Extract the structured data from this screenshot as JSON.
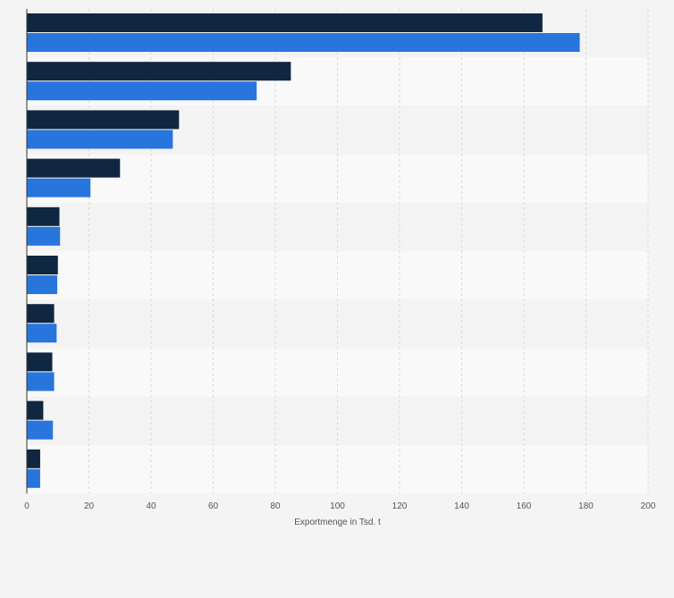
{
  "chart_data": {
    "type": "bar",
    "orientation": "horizontal",
    "title": "",
    "xlabel": "Exportmenge in Tsd. t",
    "ylabel": "",
    "xlim": [
      0,
      200
    ],
    "xticks": [
      0,
      20,
      40,
      60,
      80,
      100,
      120,
      140,
      160,
      180,
      200
    ],
    "categories": [
      "",
      "",
      "",
      "",
      "",
      "",
      "",
      "",
      "",
      ""
    ],
    "series": [
      {
        "color": "#0f2741",
        "values": [
          166,
          85,
          49,
          30,
          10.5,
          10,
          8.8,
          8.2,
          5.3,
          4.3
        ]
      },
      {
        "color": "#2876dd",
        "values": [
          178,
          74,
          47,
          20.5,
          10.7,
          9.8,
          9.6,
          8.8,
          8.4,
          4.3
        ]
      }
    ],
    "grid": true,
    "legend": "none",
    "colors": {
      "background": "#f4f4f4",
      "band_dark": "#f3f3f3",
      "band_light": "#f9f9f9",
      "grid": "#d9d9d9",
      "axis": "#333333",
      "text": "#555555"
    }
  }
}
